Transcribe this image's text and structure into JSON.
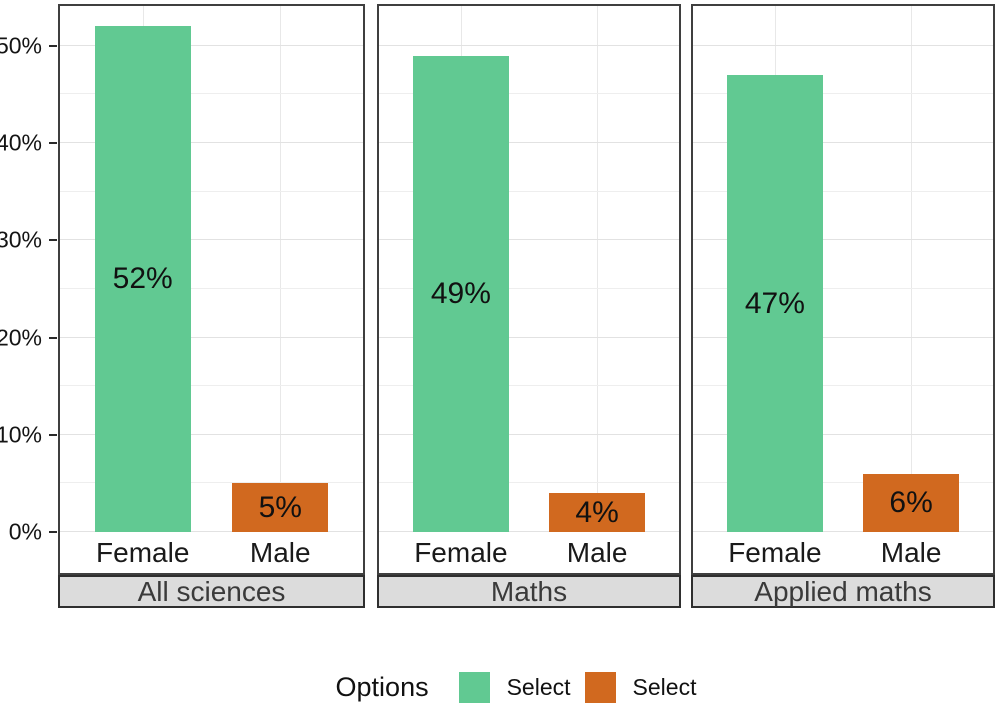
{
  "chart_data": {
    "type": "bar",
    "title": "",
    "xlabel": "",
    "ylabel": "",
    "categories": [
      "Female",
      "Male"
    ],
    "facets": [
      {
        "label": "All sciences",
        "values": [
          52,
          5
        ],
        "value_labels": [
          "52%",
          "5%"
        ]
      },
      {
        "label": "Maths",
        "values": [
          49,
          4
        ],
        "value_labels": [
          "49%",
          "4%"
        ]
      },
      {
        "label": "Applied maths",
        "values": [
          47,
          6
        ],
        "value_labels": [
          "47%",
          "6%"
        ]
      }
    ],
    "series_colors": {
      "Female": "#61c992",
      "Male": "#d1691f"
    },
    "y_ticks": [
      {
        "label": "0%",
        "value": 0
      },
      {
        "label": "10%",
        "value": 10
      },
      {
        "label": "20%",
        "value": 20
      },
      {
        "label": "30%",
        "value": 30
      },
      {
        "label": "40%",
        "value": 40
      },
      {
        "label": "50%",
        "value": 50
      }
    ],
    "ylim": [
      0,
      54.1
    ],
    "minor_step": 5,
    "grid": true,
    "legend_position": "bottom"
  },
  "legend": {
    "title": "Options",
    "items": [
      {
        "label": "Select",
        "color": "#61c992"
      },
      {
        "label": "Select",
        "color": "#d1691f"
      }
    ]
  },
  "colors": {
    "female_bar": "#61c992",
    "male_bar": "#d1691f",
    "panel_border": "#3f3f3f",
    "strip_background": "#dcdcdc",
    "strip_border": "#2f2f2f",
    "strip_text": "#3a3a3a",
    "grid_major": "#e2e2e2",
    "grid_minor": "#eeeeee",
    "grid_vertical": "#e8e8e8",
    "text": "#111111"
  }
}
